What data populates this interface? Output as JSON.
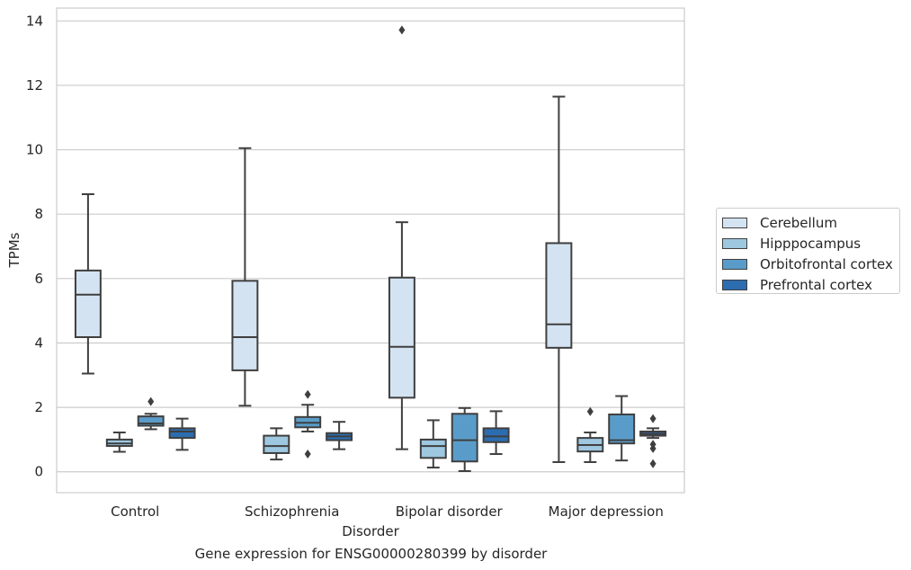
{
  "chart_data": {
    "type": "box",
    "xlabel": "Disorder",
    "ylabel": "TPMs",
    "caption": "Gene expression for ENSG00000280399 by disorder",
    "ylim": [
      -0.65,
      14.4
    ],
    "yticks": [
      0,
      2,
      4,
      6,
      8,
      10,
      12,
      14
    ],
    "grid": true,
    "legend_position": "right",
    "categories": [
      "Control",
      "Schizophrenia",
      "Bipolar disorder",
      "Major depression"
    ],
    "series": [
      {
        "name": "Cerebellum",
        "color": "#d3e3f2",
        "boxes": [
          {
            "whislo": 3.05,
            "q1": 4.18,
            "med": 5.5,
            "q3": 6.25,
            "whishi": 8.62,
            "fliers": []
          },
          {
            "whislo": 2.05,
            "q1": 3.15,
            "med": 4.18,
            "q3": 5.93,
            "whishi": 10.05,
            "fliers": []
          },
          {
            "whislo": 0.7,
            "q1": 2.3,
            "med": 3.88,
            "q3": 6.03,
            "whishi": 7.75,
            "fliers": [
              13.72
            ]
          },
          {
            "whislo": 0.3,
            "q1": 3.85,
            "med": 4.58,
            "q3": 7.1,
            "whishi": 11.65,
            "fliers": []
          }
        ]
      },
      {
        "name": "Hipppocampus",
        "color": "#9ec7e0",
        "boxes": [
          {
            "whislo": 0.62,
            "q1": 0.8,
            "med": 0.88,
            "q3": 1.0,
            "whishi": 1.22,
            "fliers": []
          },
          {
            "whislo": 0.38,
            "q1": 0.58,
            "med": 0.8,
            "q3": 1.12,
            "whishi": 1.35,
            "fliers": []
          },
          {
            "whislo": 0.13,
            "q1": 0.43,
            "med": 0.8,
            "q3": 1.0,
            "whishi": 1.6,
            "fliers": []
          },
          {
            "whislo": 0.3,
            "q1": 0.63,
            "med": 0.83,
            "q3": 1.05,
            "whishi": 1.22,
            "fliers": [
              1.87
            ]
          }
        ]
      },
      {
        "name": "Orbitofrontal cortex",
        "color": "#5a9cc9",
        "boxes": [
          {
            "whislo": 1.32,
            "q1": 1.43,
            "med": 1.5,
            "q3": 1.72,
            "whishi": 1.8,
            "fliers": [
              2.18
            ]
          },
          {
            "whislo": 1.25,
            "q1": 1.38,
            "med": 1.52,
            "q3": 1.7,
            "whishi": 2.08,
            "fliers": [
              2.4,
              0.55
            ]
          },
          {
            "whislo": 0.02,
            "q1": 0.32,
            "med": 0.98,
            "q3": 1.8,
            "whishi": 1.98,
            "fliers": []
          },
          {
            "whislo": 0.35,
            "q1": 0.88,
            "med": 0.98,
            "q3": 1.78,
            "whishi": 2.35,
            "fliers": []
          }
        ]
      },
      {
        "name": "Prefrontal cortex",
        "color": "#2c6db0",
        "boxes": [
          {
            "whislo": 0.68,
            "q1": 1.05,
            "med": 1.25,
            "q3": 1.35,
            "whishi": 1.65,
            "fliers": []
          },
          {
            "whislo": 0.7,
            "q1": 0.98,
            "med": 1.1,
            "q3": 1.2,
            "whishi": 1.55,
            "fliers": []
          },
          {
            "whislo": 0.55,
            "q1": 0.92,
            "med": 1.1,
            "q3": 1.35,
            "whishi": 1.88,
            "fliers": []
          },
          {
            "whislo": 1.05,
            "q1": 1.12,
            "med": 1.18,
            "q3": 1.25,
            "whishi": 1.35,
            "fliers": [
              1.65,
              0.85,
              0.72,
              0.25
            ]
          }
        ]
      }
    ]
  }
}
